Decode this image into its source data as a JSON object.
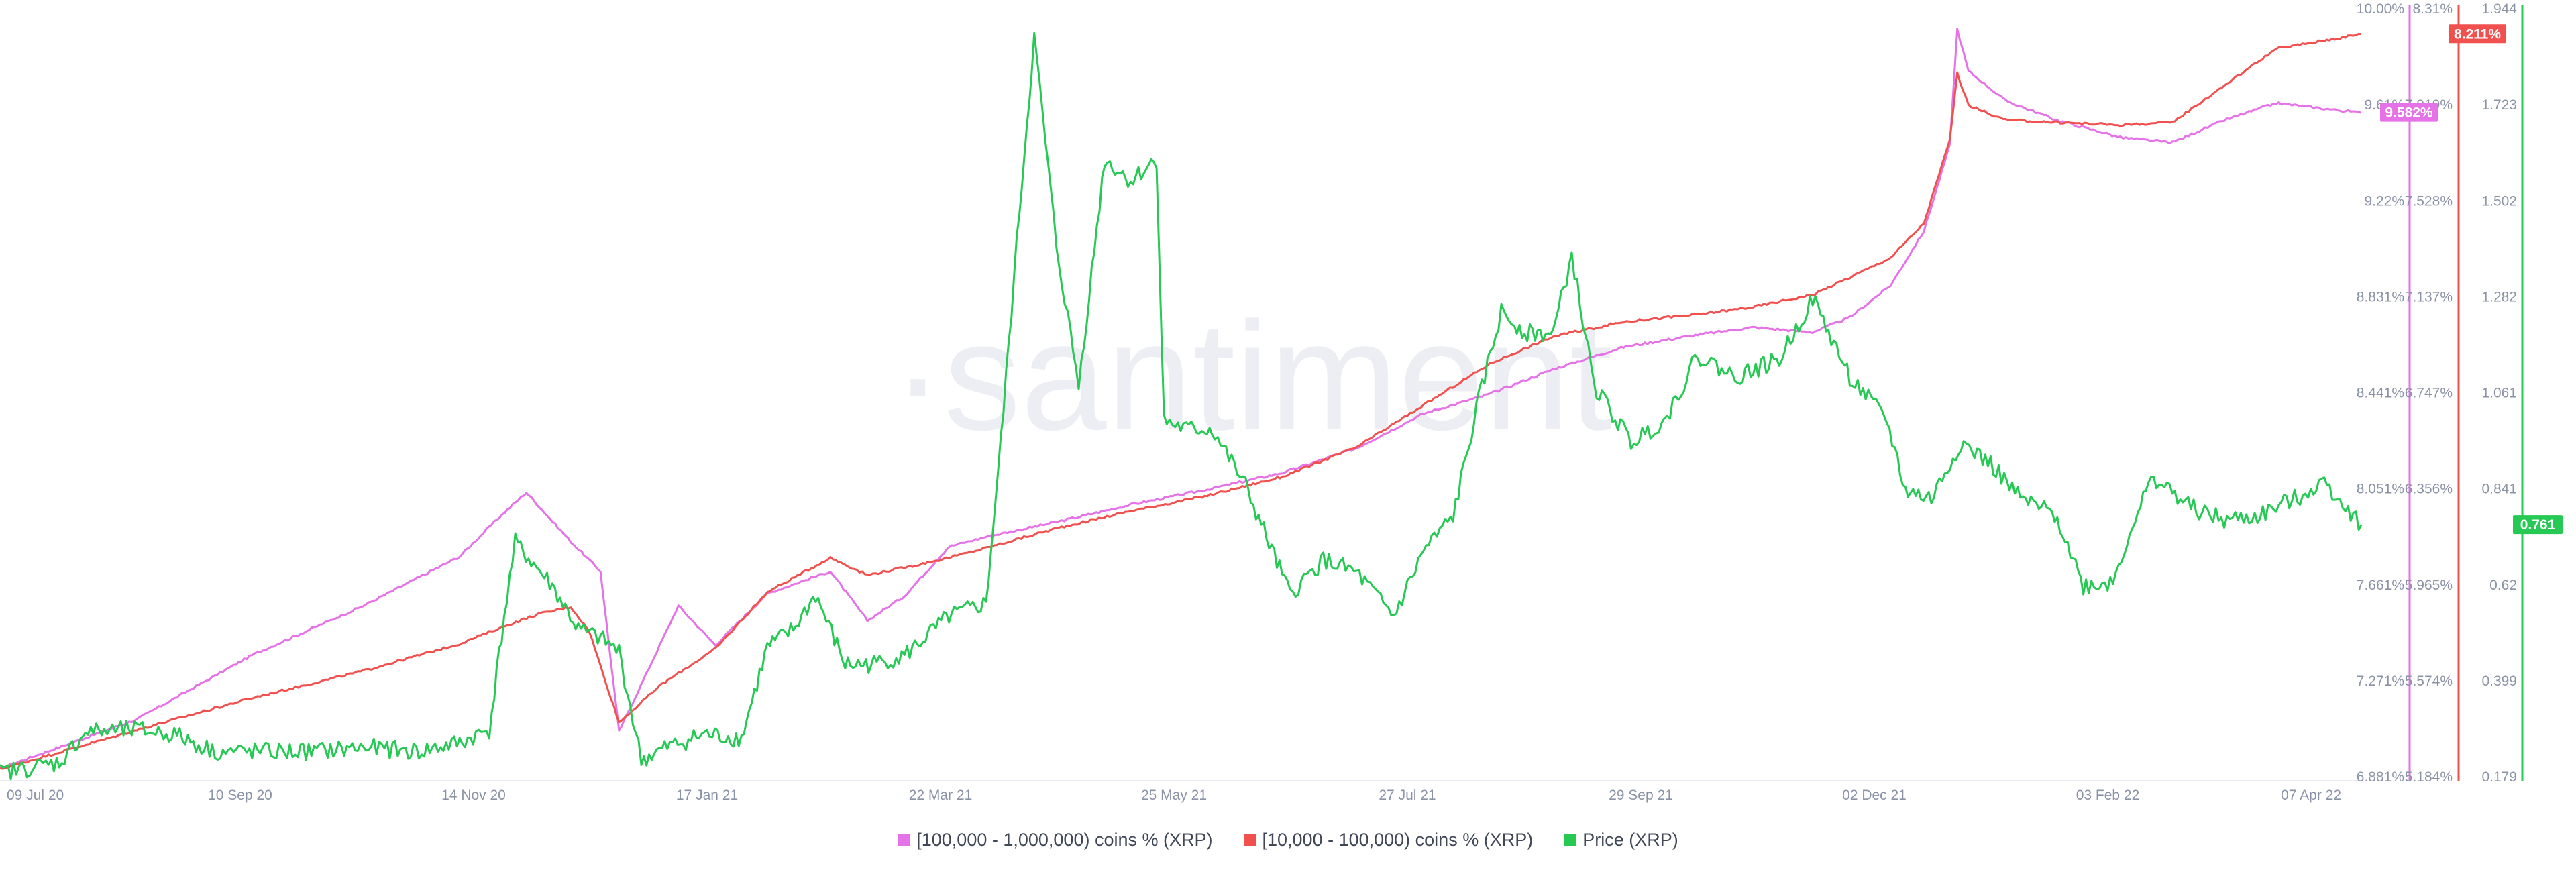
{
  "watermark": "·santiment",
  "legend": [
    {
      "label": "[100,000  - 1,000,000) coins % (XRP)",
      "color": "#e672e8"
    },
    {
      "label": "[10,000 - 100,000) coins % (XRP)",
      "color": "#f0514f"
    },
    {
      "label": "Price (XRP)",
      "color": "#26c953"
    }
  ],
  "chart_data": {
    "type": "line",
    "x_tick_labels": [
      "09 Jul 20",
      "10 Sep 20",
      "14 Nov 20",
      "17 Jan 21",
      "22 Mar 21",
      "25 May 21",
      "27 Jul 21",
      "29 Sep 21",
      "02 Dec 21",
      "03 Feb 22",
      "07 Apr 22"
    ],
    "x_range": [
      "2020-07-09",
      "2022-04-07"
    ],
    "axes": {
      "pink": {
        "ticks": [
          "10.00%",
          "9.61%",
          "9.22%",
          "8.831%",
          "8.441%",
          "8.051%",
          "7.661%",
          "7.271%",
          "6.881%"
        ],
        "range": [
          6.881,
          10.0
        ],
        "color": "#e672e8"
      },
      "red": {
        "ticks": [
          "8.31%",
          "7.919%",
          "7.528%",
          "7.137%",
          "6.747%",
          "6.356%",
          "5.965%",
          "5.574%",
          "5.184%"
        ],
        "range": [
          5.184,
          8.31
        ],
        "color": "#f0514f"
      },
      "green": {
        "ticks": [
          "1.944",
          "1.723",
          "1.502",
          "1.282",
          "1.061",
          "0.841",
          "0.62",
          "0.399",
          "0.179"
        ],
        "range": [
          0.179,
          1.944
        ],
        "color": "#26c953"
      }
    },
    "current_values": {
      "pink": "9.582%",
      "red": "8.211%",
      "green": "0.761"
    },
    "series": [
      {
        "name": "[100,000  - 1,000,000) coins % (XRP)",
        "axis": "pink",
        "color": "#e672e8",
        "points": [
          [
            "2020-07-09",
            6.92
          ],
          [
            "2020-08-15",
            7.12
          ],
          [
            "2020-09-15",
            7.38
          ],
          [
            "2020-10-15",
            7.58
          ],
          [
            "2020-11-10",
            7.78
          ],
          [
            "2020-11-20",
            7.93
          ],
          [
            "2020-11-28",
            8.04
          ],
          [
            "2020-12-10",
            7.84
          ],
          [
            "2020-12-18",
            7.72
          ],
          [
            "2020-12-23",
            7.07
          ],
          [
            "2021-01-08",
            7.58
          ],
          [
            "2021-01-18",
            7.42
          ],
          [
            "2021-02-01",
            7.63
          ],
          [
            "2021-02-18",
            7.72
          ],
          [
            "2021-02-28",
            7.52
          ],
          [
            "2021-03-10",
            7.62
          ],
          [
            "2021-03-22",
            7.82
          ],
          [
            "2021-04-01",
            7.86
          ],
          [
            "2021-04-20",
            7.92
          ],
          [
            "2021-05-10",
            7.99
          ],
          [
            "2021-05-30",
            8.05
          ],
          [
            "2021-06-20",
            8.12
          ],
          [
            "2021-07-10",
            8.22
          ],
          [
            "2021-07-28",
            8.36
          ],
          [
            "2021-08-15",
            8.44
          ],
          [
            "2021-09-01",
            8.54
          ],
          [
            "2021-09-20",
            8.63
          ],
          [
            "2021-10-10",
            8.68
          ],
          [
            "2021-10-25",
            8.71
          ],
          [
            "2021-11-10",
            8.69
          ],
          [
            "2021-11-20",
            8.75
          ],
          [
            "2021-12-01",
            8.88
          ],
          [
            "2021-12-10",
            9.1
          ],
          [
            "2021-12-17",
            9.45
          ],
          [
            "2021-12-19",
            9.92
          ],
          [
            "2021-12-22",
            9.75
          ],
          [
            "2022-01-01",
            9.63
          ],
          [
            "2022-01-15",
            9.55
          ],
          [
            "2022-02-01",
            9.48
          ],
          [
            "2022-02-15",
            9.46
          ],
          [
            "2022-03-01",
            9.55
          ],
          [
            "2022-03-15",
            9.62
          ],
          [
            "2022-04-07",
            9.58
          ]
        ]
      },
      {
        "name": "[10,000 - 100,000) coins % (XRP)",
        "axis": "red",
        "color": "#f0514f",
        "points": [
          [
            "2020-07-09",
            5.22
          ],
          [
            "2020-08-15",
            5.38
          ],
          [
            "2020-09-15",
            5.51
          ],
          [
            "2020-10-15",
            5.62
          ],
          [
            "2020-11-10",
            5.73
          ],
          [
            "2020-11-20",
            5.79
          ],
          [
            "2020-12-01",
            5.85
          ],
          [
            "2020-12-10",
            5.88
          ],
          [
            "2020-12-15",
            5.78
          ],
          [
            "2020-12-18",
            5.64
          ],
          [
            "2020-12-23",
            5.41
          ],
          [
            "2021-01-03",
            5.56
          ],
          [
            "2021-01-18",
            5.71
          ],
          [
            "2021-02-01",
            5.94
          ],
          [
            "2021-02-18",
            6.08
          ],
          [
            "2021-02-28",
            6.01
          ],
          [
            "2021-03-10",
            6.04
          ],
          [
            "2021-03-22",
            6.08
          ],
          [
            "2021-04-01",
            6.12
          ],
          [
            "2021-04-20",
            6.2
          ],
          [
            "2021-05-10",
            6.27
          ],
          [
            "2021-05-30",
            6.33
          ],
          [
            "2021-06-20",
            6.41
          ],
          [
            "2021-07-10",
            6.53
          ],
          [
            "2021-07-28",
            6.7
          ],
          [
            "2021-08-15",
            6.87
          ],
          [
            "2021-09-01",
            6.98
          ],
          [
            "2021-09-20",
            7.04
          ],
          [
            "2021-10-10",
            7.07
          ],
          [
            "2021-10-25",
            7.1
          ],
          [
            "2021-11-10",
            7.15
          ],
          [
            "2021-11-20",
            7.22
          ],
          [
            "2021-12-01",
            7.3
          ],
          [
            "2021-12-10",
            7.44
          ],
          [
            "2021-12-17",
            7.78
          ],
          [
            "2021-12-19",
            8.05
          ],
          [
            "2021-12-22",
            7.92
          ],
          [
            "2022-01-01",
            7.86
          ],
          [
            "2022-01-15",
            7.85
          ],
          [
            "2022-02-01",
            7.84
          ],
          [
            "2022-02-15",
            7.85
          ],
          [
            "2022-03-01",
            8.0
          ],
          [
            "2022-03-15",
            8.15
          ],
          [
            "2022-04-07",
            8.21
          ]
        ]
      },
      {
        "name": "Price (XRP)",
        "axis": "green",
        "color": "#26c953",
        "points": [
          [
            "2020-07-09",
            0.191
          ],
          [
            "2020-07-25",
            0.215
          ],
          [
            "2020-08-01",
            0.285
          ],
          [
            "2020-08-15",
            0.29
          ],
          [
            "2020-08-25",
            0.28
          ],
          [
            "2020-09-05",
            0.24
          ],
          [
            "2020-09-15",
            0.24
          ],
          [
            "2020-10-01",
            0.24
          ],
          [
            "2020-10-15",
            0.25
          ],
          [
            "2020-10-30",
            0.24
          ],
          [
            "2020-11-10",
            0.26
          ],
          [
            "2020-11-18",
            0.29
          ],
          [
            "2020-11-22",
            0.55
          ],
          [
            "2020-11-25",
            0.72
          ],
          [
            "2020-12-05",
            0.62
          ],
          [
            "2020-12-12",
            0.52
          ],
          [
            "2020-12-18",
            0.5
          ],
          [
            "2020-12-23",
            0.47
          ],
          [
            "2020-12-29",
            0.22
          ],
          [
            "2021-01-05",
            0.25
          ],
          [
            "2021-01-15",
            0.28
          ],
          [
            "2021-01-25",
            0.27
          ],
          [
            "2021-02-01",
            0.48
          ],
          [
            "2021-02-08",
            0.52
          ],
          [
            "2021-02-14",
            0.6
          ],
          [
            "2021-02-22",
            0.44
          ],
          [
            "2021-03-01",
            0.44
          ],
          [
            "2021-03-10",
            0.46
          ],
          [
            "2021-03-22",
            0.55
          ],
          [
            "2021-04-01",
            0.58
          ],
          [
            "2021-04-05",
            0.95
          ],
          [
            "2021-04-10",
            1.48
          ],
          [
            "2021-04-14",
            1.88
          ],
          [
            "2021-04-20",
            1.4
          ],
          [
            "2021-04-26",
            1.08
          ],
          [
            "2021-05-03",
            1.6
          ],
          [
            "2021-05-10",
            1.55
          ],
          [
            "2021-05-17",
            1.6
          ],
          [
            "2021-05-19",
            1.0
          ],
          [
            "2021-05-25",
            0.98
          ],
          [
            "2021-06-01",
            0.98
          ],
          [
            "2021-06-10",
            0.85
          ],
          [
            "2021-06-22",
            0.6
          ],
          [
            "2021-07-01",
            0.68
          ],
          [
            "2021-07-10",
            0.65
          ],
          [
            "2021-07-20",
            0.55
          ],
          [
            "2021-07-28",
            0.7
          ],
          [
            "2021-08-05",
            0.78
          ],
          [
            "2021-08-12",
            1.05
          ],
          [
            "2021-08-18",
            1.25
          ],
          [
            "2021-08-25",
            1.2
          ],
          [
            "2021-09-01",
            1.2
          ],
          [
            "2021-09-06",
            1.38
          ],
          [
            "2021-09-12",
            1.08
          ],
          [
            "2021-09-22",
            0.95
          ],
          [
            "2021-10-01",
            1.0
          ],
          [
            "2021-10-10",
            1.15
          ],
          [
            "2021-10-20",
            1.1
          ],
          [
            "2021-11-01",
            1.14
          ],
          [
            "2021-11-10",
            1.28
          ],
          [
            "2021-11-20",
            1.1
          ],
          [
            "2021-11-30",
            1.0
          ],
          [
            "2021-12-05",
            0.84
          ],
          [
            "2021-12-12",
            0.82
          ],
          [
            "2021-12-20",
            0.95
          ],
          [
            "2021-12-28",
            0.9
          ],
          [
            "2022-01-05",
            0.82
          ],
          [
            "2022-01-15",
            0.78
          ],
          [
            "2022-01-22",
            0.62
          ],
          [
            "2022-01-30",
            0.63
          ],
          [
            "2022-02-05",
            0.78
          ],
          [
            "2022-02-10",
            0.87
          ],
          [
            "2022-02-20",
            0.8
          ],
          [
            "2022-03-01",
            0.77
          ],
          [
            "2022-03-10",
            0.78
          ],
          [
            "2022-03-20",
            0.82
          ],
          [
            "2022-03-28",
            0.86
          ],
          [
            "2022-04-07",
            0.761
          ]
        ]
      }
    ]
  }
}
